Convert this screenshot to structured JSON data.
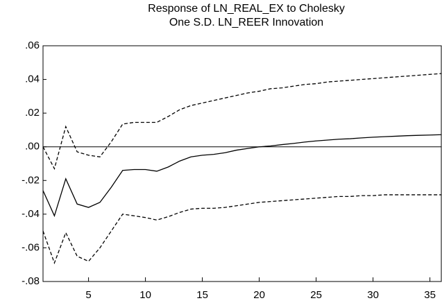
{
  "chart_data": {
    "type": "line",
    "title": [
      "Response of LN_REAL_EX to Cholesky",
      "One S.D. LN_REER Innovation"
    ],
    "x": [
      1,
      2,
      3,
      4,
      5,
      6,
      7,
      8,
      9,
      10,
      11,
      12,
      13,
      14,
      15,
      16,
      17,
      18,
      19,
      20,
      21,
      22,
      23,
      24,
      25,
      26,
      27,
      28,
      29,
      30,
      31,
      32,
      33,
      34,
      35,
      36
    ],
    "series": [
      {
        "color": "#000000",
        "dashed": false,
        "values": [
          -0.026,
          -0.041,
          -0.019,
          -0.034,
          -0.036,
          -0.033,
          -0.024,
          -0.014,
          -0.0135,
          -0.0135,
          -0.0145,
          -0.012,
          -0.0085,
          -0.006,
          -0.005,
          -0.0045,
          -0.0035,
          -0.002,
          -0.001,
          0.0,
          0.0005,
          0.0013,
          0.002,
          0.0028,
          0.0035,
          0.004,
          0.0045,
          0.0048,
          0.0053,
          0.0057,
          0.006,
          0.0063,
          0.0066,
          0.0068,
          0.007,
          0.0072
        ]
      },
      {
        "color": "#000000",
        "dashed": true,
        "values": [
          0.0,
          -0.013,
          0.012,
          -0.003,
          -0.005,
          -0.006,
          0.003,
          0.0135,
          0.0145,
          0.0145,
          0.0145,
          0.018,
          0.022,
          0.0245,
          0.026,
          0.0275,
          0.029,
          0.0305,
          0.032,
          0.033,
          0.0345,
          0.035,
          0.036,
          0.037,
          0.0375,
          0.0385,
          0.039,
          0.0395,
          0.04,
          0.0405,
          0.041,
          0.0415,
          0.042,
          0.0425,
          0.043,
          0.0435
        ]
      },
      {
        "color": "#000000",
        "dashed": true,
        "values": [
          -0.05,
          -0.069,
          -0.051,
          -0.065,
          -0.068,
          -0.06,
          -0.05,
          -0.04,
          -0.041,
          -0.042,
          -0.0435,
          -0.0415,
          -0.039,
          -0.037,
          -0.0365,
          -0.0365,
          -0.036,
          -0.035,
          -0.034,
          -0.033,
          -0.0325,
          -0.032,
          -0.0315,
          -0.031,
          -0.0305,
          -0.03,
          -0.0295,
          -0.0295,
          -0.029,
          -0.029,
          -0.0285,
          -0.0285,
          -0.0285,
          -0.0285,
          -0.0285,
          -0.0285
        ]
      }
    ],
    "xlim": [
      1,
      36
    ],
    "xticks": [
      5,
      10,
      15,
      20,
      25,
      30,
      35
    ],
    "ylim": [
      -0.08,
      0.06
    ],
    "yticks": [
      {
        "value": -0.08,
        "label": "-.08"
      },
      {
        "value": -0.06,
        "label": "-.06"
      },
      {
        "value": -0.04,
        "label": "-.04"
      },
      {
        "value": -0.02,
        "label": "-.02"
      },
      {
        "value": 0,
        "label": ".00"
      },
      {
        "value": 0.02,
        "label": ".02"
      },
      {
        "value": 0.04,
        "label": ".04"
      },
      {
        "value": 0.06,
        "label": ".06"
      }
    ],
    "zero_line": true,
    "grid": false
  }
}
